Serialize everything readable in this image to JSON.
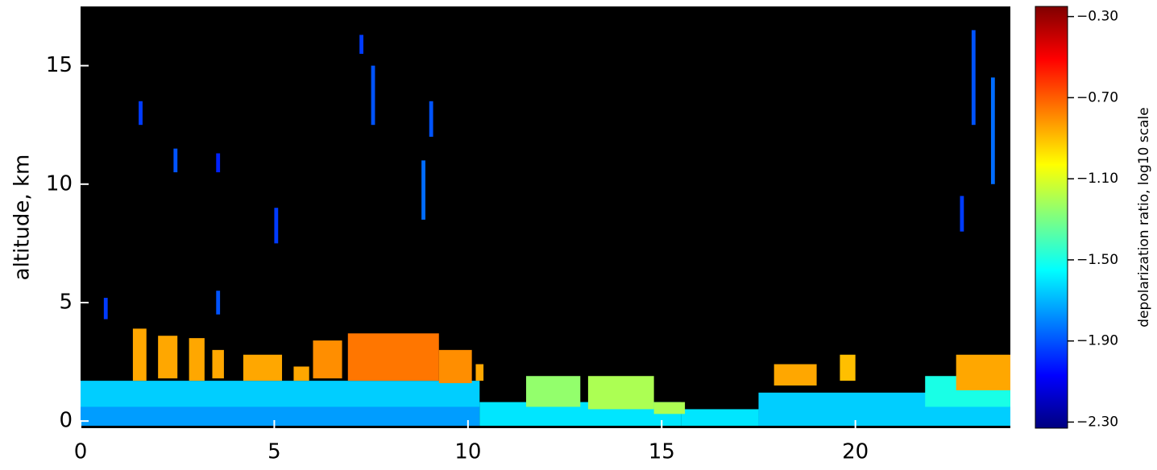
{
  "chart_data": {
    "type": "heatmap",
    "y_label": "altitude, km",
    "xlim": [
      0,
      24
    ],
    "xticks": [
      0,
      5,
      10,
      15,
      20
    ],
    "ylim": [
      -0.3,
      17.5
    ],
    "yticks": [
      0,
      5,
      10,
      15
    ],
    "colorbar": {
      "label": "depolarization ratio, log10 scale",
      "colormap": "jet",
      "lim": [
        -2.33,
        -0.25
      ],
      "ticks": [
        {
          "value": -0.3,
          "label": "−0.30"
        },
        {
          "value": -0.7,
          "label": "−0.70"
        },
        {
          "value": -1.1,
          "label": "−1.10"
        },
        {
          "value": -1.5,
          "label": "−1.50"
        },
        {
          "value": -1.9,
          "label": "−1.90"
        },
        {
          "value": -2.3,
          "label": "−2.30"
        }
      ]
    },
    "cells": [
      {
        "x": [
          0,
          10.3
        ],
        "y": [
          0.6,
          1.7
        ],
        "value": -1.65
      },
      {
        "x": [
          0,
          10.3
        ],
        "y": [
          -0.2,
          0.6
        ],
        "value": -1.75
      },
      {
        "x": [
          10.3,
          15.5
        ],
        "y": [
          -0.2,
          0.8
        ],
        "value": -1.6
      },
      {
        "x": [
          15.5,
          17.5
        ],
        "y": [
          -0.2,
          0.5
        ],
        "value": -1.6
      },
      {
        "x": [
          17.5,
          24
        ],
        "y": [
          -0.2,
          1.2
        ],
        "value": -1.65
      },
      {
        "x": [
          21.8,
          24
        ],
        "y": [
          0.6,
          1.9
        ],
        "value": -1.5
      },
      {
        "x": [
          1.35,
          1.7
        ],
        "y": [
          1.7,
          3.9
        ],
        "value": -0.85
      },
      {
        "x": [
          2.0,
          2.5
        ],
        "y": [
          1.8,
          3.6
        ],
        "value": -0.85
      },
      {
        "x": [
          2.8,
          3.2
        ],
        "y": [
          1.7,
          3.5
        ],
        "value": -0.85
      },
      {
        "x": [
          3.4,
          3.7
        ],
        "y": [
          1.8,
          3.0
        ],
        "value": -0.85
      },
      {
        "x": [
          4.2,
          5.2
        ],
        "y": [
          1.7,
          2.8
        ],
        "value": -0.85
      },
      {
        "x": [
          5.5,
          5.9
        ],
        "y": [
          1.7,
          2.3
        ],
        "value": -0.85
      },
      {
        "x": [
          6.0,
          6.75
        ],
        "y": [
          1.8,
          3.4
        ],
        "value": -0.8
      },
      {
        "x": [
          6.9,
          9.25
        ],
        "y": [
          1.7,
          3.7
        ],
        "value": -0.75
      },
      {
        "x": [
          9.25,
          10.1
        ],
        "y": [
          1.6,
          3.0
        ],
        "value": -0.8
      },
      {
        "x": [
          10.2,
          10.4
        ],
        "y": [
          1.7,
          2.4
        ],
        "value": -0.85
      },
      {
        "x": [
          11.5,
          12.9
        ],
        "y": [
          0.6,
          1.9
        ],
        "value": -1.25
      },
      {
        "x": [
          13.1,
          14.8
        ],
        "y": [
          0.5,
          1.9
        ],
        "value": -1.2
      },
      {
        "x": [
          14.8,
          15.6
        ],
        "y": [
          0.3,
          0.8
        ],
        "value": -1.2
      },
      {
        "x": [
          17.9,
          19.0
        ],
        "y": [
          1.5,
          2.4
        ],
        "value": -0.85
      },
      {
        "x": [
          19.6,
          20.0
        ],
        "y": [
          1.7,
          2.8
        ],
        "value": -0.9
      },
      {
        "x": [
          22.6,
          24
        ],
        "y": [
          1.3,
          2.8
        ],
        "value": -0.85
      },
      {
        "x": [
          0.6,
          0.7
        ],
        "y": [
          4.3,
          5.2
        ],
        "value": -1.95
      },
      {
        "x": [
          1.5,
          1.6
        ],
        "y": [
          12.5,
          13.5
        ],
        "value": -1.95
      },
      {
        "x": [
          2.4,
          2.5
        ],
        "y": [
          10.5,
          11.5
        ],
        "value": -1.9
      },
      {
        "x": [
          3.5,
          3.6
        ],
        "y": [
          10.5,
          11.3
        ],
        "value": -2.0
      },
      {
        "x": [
          3.5,
          3.6
        ],
        "y": [
          4.5,
          5.5
        ],
        "value": -1.9
      },
      {
        "x": [
          7.2,
          7.3
        ],
        "y": [
          15.5,
          16.3
        ],
        "value": -1.95
      },
      {
        "x": [
          7.5,
          7.6
        ],
        "y": [
          12.5,
          15.0
        ],
        "value": -1.9
      },
      {
        "x": [
          8.8,
          8.9
        ],
        "y": [
          8.5,
          11.0
        ],
        "value": -1.85
      },
      {
        "x": [
          9.0,
          9.1
        ],
        "y": [
          12.0,
          13.5
        ],
        "value": -1.9
      },
      {
        "x": [
          5.0,
          5.1
        ],
        "y": [
          7.5,
          9.0
        ],
        "value": -1.95
      },
      {
        "x": [
          23.0,
          23.1
        ],
        "y": [
          12.5,
          16.5
        ],
        "value": -1.9
      },
      {
        "x": [
          23.5,
          23.6
        ],
        "y": [
          10.0,
          14.5
        ],
        "value": -1.85
      },
      {
        "x": [
          22.7,
          22.8
        ],
        "y": [
          8.0,
          9.5
        ],
        "value": -1.95
      }
    ]
  }
}
